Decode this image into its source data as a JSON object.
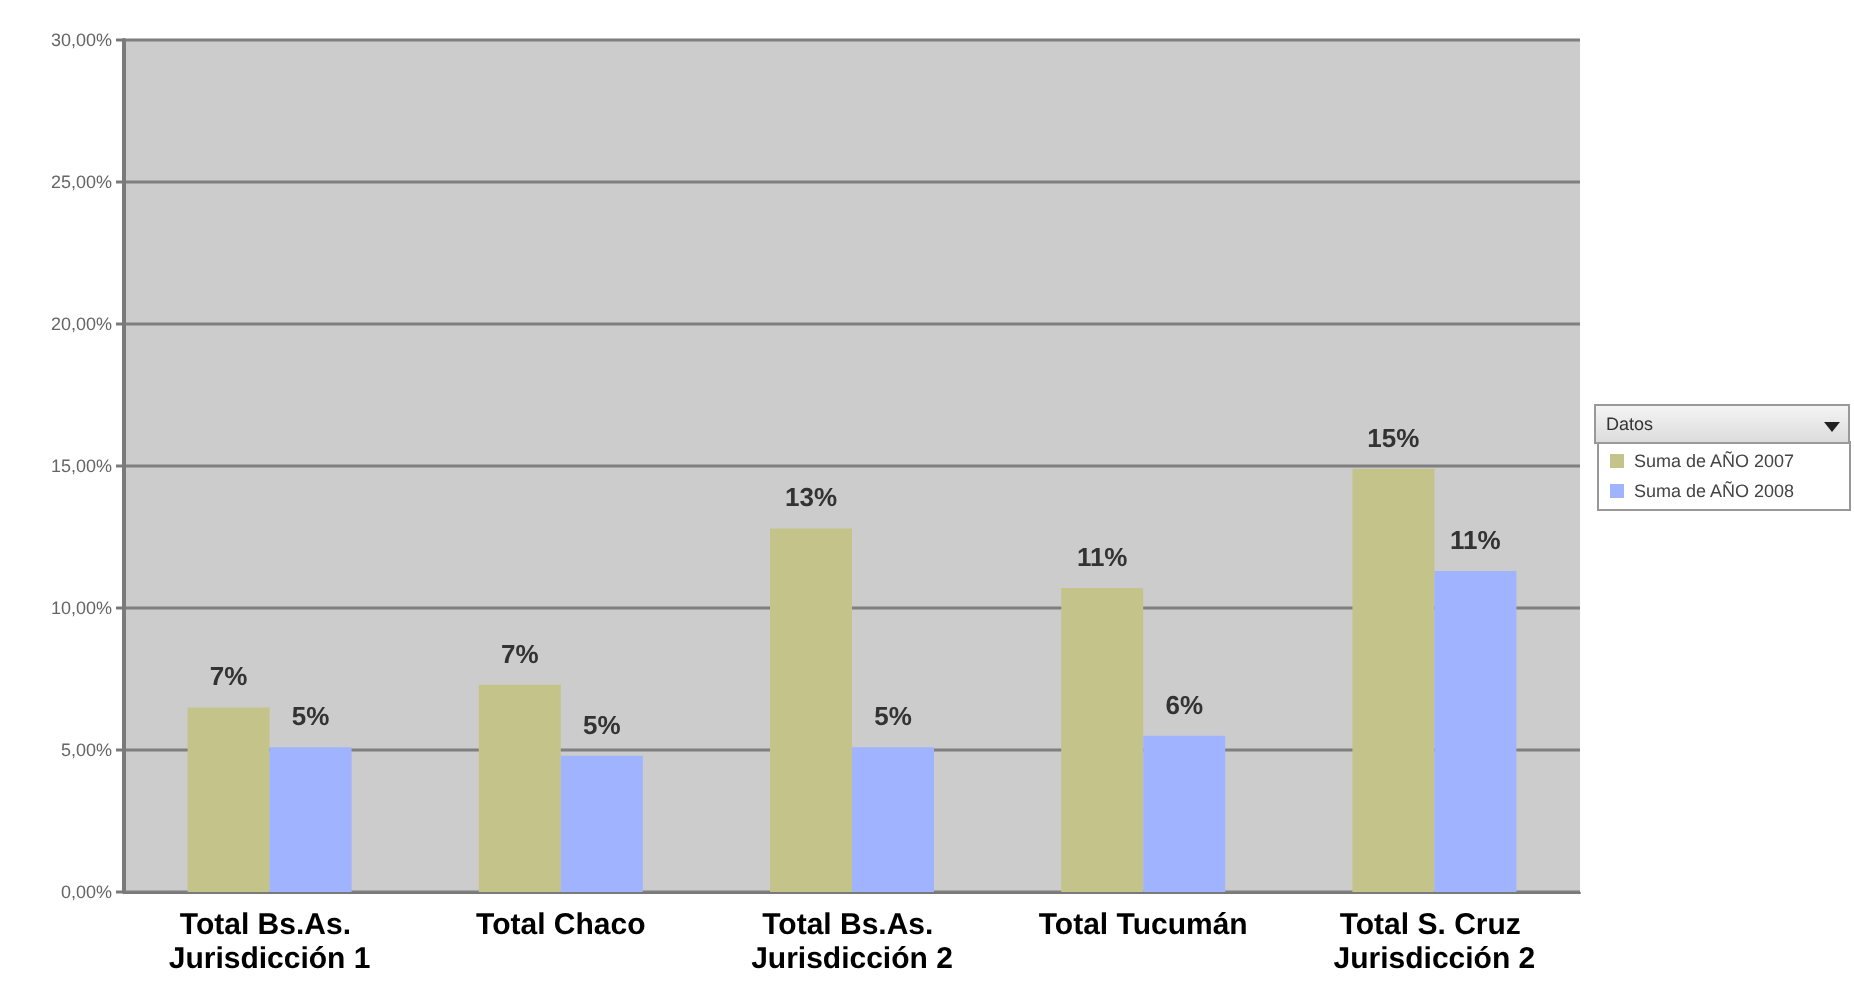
{
  "chart_data": {
    "type": "bar",
    "categories": [
      "Total Bs.As. Jurisdicción 1",
      "Total Chaco",
      "Total Bs.As. Jurisdicción 2",
      "Total Tucumán",
      "Total S. Cruz Jurisdicción 2"
    ],
    "series": [
      {
        "name": "Suma de AÑO 2007",
        "color": "#c4c48a",
        "values": [
          6.5,
          7.3,
          12.8,
          10.7,
          14.9
        ],
        "value_labels": [
          "7%",
          "7%",
          "13%",
          "11%",
          "15%"
        ]
      },
      {
        "name": "Suma de AÑO 2008",
        "color": "#9fb3ff",
        "values": [
          5.1,
          4.8,
          5.1,
          5.5,
          11.3
        ],
        "value_labels": [
          "5%",
          "5%",
          "5%",
          "6%",
          "11%"
        ]
      }
    ],
    "ylim": [
      0,
      30
    ],
    "yticks": [
      {
        "value": 0,
        "label": "0,00%"
      },
      {
        "value": 5,
        "label": "5,00%"
      },
      {
        "value": 10,
        "label": "10,00%"
      },
      {
        "value": 15,
        "label": "15,00%"
      },
      {
        "value": 20,
        "label": "20,00%"
      },
      {
        "value": 25,
        "label": "25,00%"
      },
      {
        "value": 30,
        "label": "30,00%"
      }
    ],
    "grid": "y",
    "legend": "right",
    "legend_title": "Datos"
  }
}
